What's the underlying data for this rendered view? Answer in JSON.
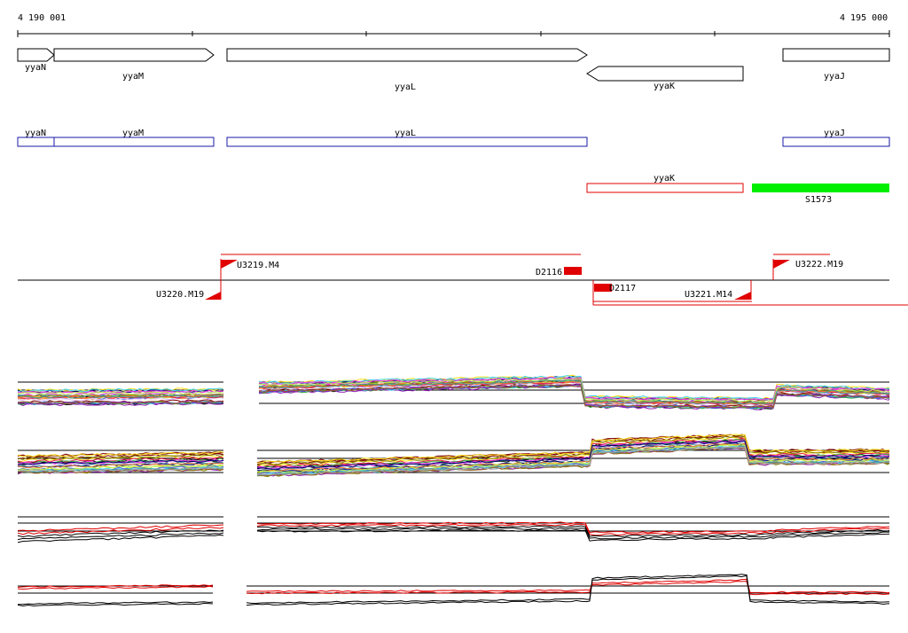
{
  "ruler": {
    "start_label": "4 190 001",
    "end_label": "4 195 000"
  },
  "gene_track": [
    {
      "name": "yyaN",
      "strand": "+"
    },
    {
      "name": "yyaM",
      "strand": "+"
    },
    {
      "name": "yyaL",
      "strand": "+"
    },
    {
      "name": "yyaK",
      "strand": "-"
    },
    {
      "name": "yyaJ",
      "strand": "none"
    }
  ],
  "cds_track": {
    "blue": [
      {
        "name": "yyaN"
      },
      {
        "name": "yyaM"
      },
      {
        "name": "yyaL"
      },
      {
        "name": "yyaJ"
      }
    ],
    "red": [
      {
        "name": "yyaK"
      }
    ],
    "green": [
      {
        "name": "S1573"
      }
    ]
  },
  "segment_track": {
    "flags": [
      "U3219.M4",
      "U3220.M19",
      "U3221.M14",
      "U3222.M19"
    ],
    "boxes": [
      "D2116",
      "D2117"
    ]
  },
  "colors": {
    "blue_feature": "#1a1aaa",
    "red_feature": "#e00000",
    "green_feature": "#00ee00",
    "black": "#000000"
  },
  "series_palette": [
    "#e6194b",
    "#3cb44b",
    "#4363d8",
    "#f58231",
    "#911eb4",
    "#42d4f4",
    "#f032e6",
    "#bfef45",
    "#469990",
    "#9a6324",
    "#800000",
    "#808000",
    "#000075",
    "#ffe119",
    "#a9a9a9",
    "#dcbeff"
  ]
}
